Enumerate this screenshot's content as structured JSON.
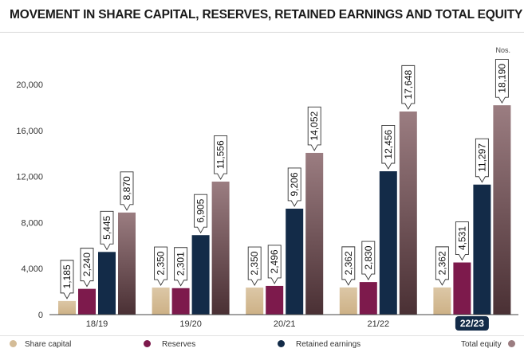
{
  "title": "MOVEMENT IN SHARE CAPITAL, RESERVES, RETAINED EARNINGS AND TOTAL EQUITY",
  "unit_label": "Nos.",
  "colors": {
    "share_capital": "#d4bc97",
    "reserves": "#7d1a4c",
    "retained_earnings": "#132b48",
    "total_equity": "#9b7d81",
    "highlight_badge": "#132b48",
    "axis": "#444444"
  },
  "legend": [
    {
      "label": "Share capital",
      "color": "#d4bc97"
    },
    {
      "label": "Reserves",
      "color": "#7d1a4c"
    },
    {
      "label": "Retained earnings",
      "color": "#132b48"
    },
    {
      "label": "Total equity",
      "color": "#9b7d81"
    }
  ],
  "chart_data": {
    "type": "bar",
    "title": "MOVEMENT IN SHARE CAPITAL, RESERVES, RETAINED EARNINGS AND TOTAL EQUITY",
    "xlabel": "",
    "ylabel": "",
    "unit": "Nos.",
    "categories": [
      "18/19",
      "19/20",
      "20/21",
      "21/22",
      "22/23"
    ],
    "highlighted_category": "22/23",
    "ylim": [
      0,
      20000
    ],
    "yticks": [
      0,
      4000,
      8000,
      12000,
      16000,
      20000
    ],
    "ytick_labels": [
      "0",
      "4,000",
      "8,000",
      "12,000",
      "16,000",
      "20,000"
    ],
    "grid": false,
    "legend_position": "bottom",
    "series": [
      {
        "name": "Share capital",
        "color": "#d4bc97",
        "values": [
          1185,
          2350,
          2350,
          2362,
          2362
        ],
        "labels": [
          "1,185",
          "2,350",
          "2,350",
          "2,362",
          "2,362"
        ]
      },
      {
        "name": "Reserves",
        "color": "#7d1a4c",
        "values": [
          2240,
          2301,
          2496,
          2830,
          4531
        ],
        "labels": [
          "2,240",
          "2,301",
          "2,496",
          "2,830",
          "4,531"
        ]
      },
      {
        "name": "Retained earnings",
        "color": "#132b48",
        "values": [
          5445,
          6905,
          9206,
          12456,
          11297
        ],
        "labels": [
          "5,445",
          "6,905",
          "9,206",
          "12,456",
          "11,297"
        ]
      },
      {
        "name": "Total equity",
        "color": "#9b7d81",
        "values": [
          8870,
          11556,
          14052,
          17648,
          18190
        ],
        "labels": [
          "8,870",
          "11,556",
          "14,052",
          "17,648",
          "18,190"
        ]
      }
    ]
  }
}
